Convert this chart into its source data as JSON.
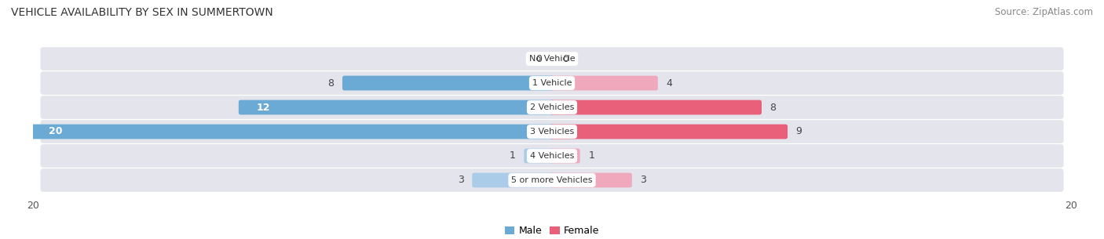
{
  "title": "VEHICLE AVAILABILITY BY SEX IN SUMMERTOWN",
  "source": "Source: ZipAtlas.com",
  "categories": [
    "No Vehicle",
    "1 Vehicle",
    "2 Vehicles",
    "3 Vehicles",
    "4 Vehicles",
    "5 or more Vehicles"
  ],
  "male_values": [
    0,
    8,
    12,
    20,
    1,
    3
  ],
  "female_values": [
    0,
    4,
    8,
    9,
    1,
    3
  ],
  "male_color_dark": "#6aaad4",
  "male_color_light": "#aacce8",
  "female_color_dark": "#e8607a",
  "female_color_light": "#f0a8bc",
  "bar_bg_color": "#e4e4ec",
  "row_bg_color": "#f0f0f5",
  "xlim": 20,
  "bar_height": 0.72,
  "title_fontsize": 10,
  "source_fontsize": 8.5,
  "tick_fontsize": 9,
  "category_fontsize": 8,
  "value_fontsize": 9
}
